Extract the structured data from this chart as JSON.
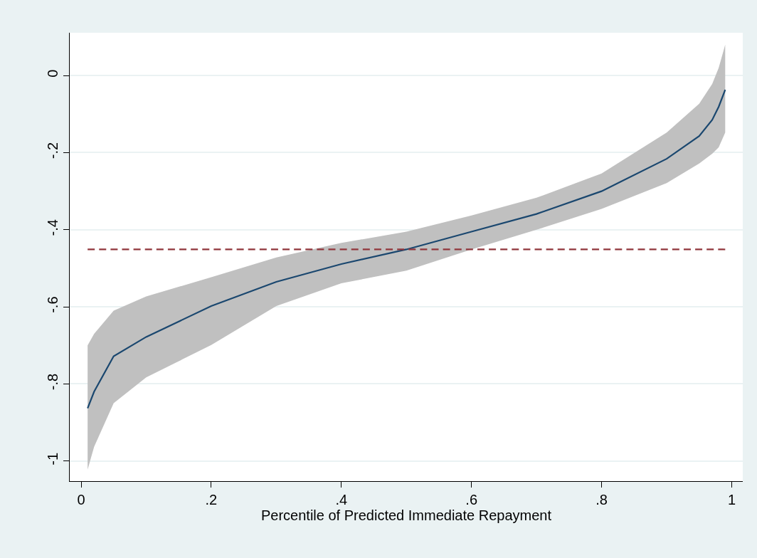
{
  "chart_data": {
    "type": "line",
    "xlabel": "Percentile of Predicted Immediate Repayment",
    "xlim": [
      -0.0175,
      1.017
    ],
    "ylim": [
      -1.052,
      0.111
    ],
    "xticks": [
      0,
      {
        "value": 0.2,
        "label": ".2"
      },
      {
        "value": 0.4,
        "label": ".4"
      },
      {
        "value": 0.6,
        "label": ".6"
      },
      {
        "value": 0.8,
        "label": ".8"
      },
      1
    ],
    "yticks": [
      0,
      {
        "value": -0.2,
        "label": "-.2"
      },
      {
        "value": -0.4,
        "label": "-.4"
      },
      {
        "value": -0.6,
        "label": "-.6"
      },
      {
        "value": -0.8,
        "label": "-.8"
      },
      -1
    ],
    "grid": "y",
    "series": [
      {
        "color": "#1a476f",
        "line_style": "solid",
        "x": [
          0.01,
          0.02,
          0.05,
          0.1,
          0.2,
          0.3,
          0.4,
          0.5,
          0.6,
          0.7,
          0.8,
          0.9,
          0.95,
          0.97,
          0.98,
          0.99
        ],
        "values": [
          -0.863,
          -0.82,
          -0.728,
          -0.678,
          -0.598,
          -0.535,
          -0.489,
          -0.451,
          -0.405,
          -0.359,
          -0.3,
          -0.216,
          -0.157,
          -0.115,
          -0.081,
          -0.037
        ],
        "lower": [
          -1.022,
          -0.963,
          -0.85,
          -0.783,
          -0.699,
          -0.598,
          -0.539,
          -0.506,
          -0.451,
          -0.4,
          -0.346,
          -0.279,
          -0.228,
          -0.203,
          -0.186,
          -0.148
        ],
        "upper": [
          -0.7,
          -0.67,
          -0.61,
          -0.573,
          -0.523,
          -0.472,
          -0.434,
          -0.405,
          -0.363,
          -0.317,
          -0.254,
          -0.148,
          -0.073,
          -0.022,
          0.02,
          0.08
        ]
      },
      {
        "color": "#90353b",
        "line_style": "dashed",
        "x": [
          0.01,
          0.99
        ],
        "values": [
          -0.451,
          -0.451
        ]
      }
    ]
  }
}
